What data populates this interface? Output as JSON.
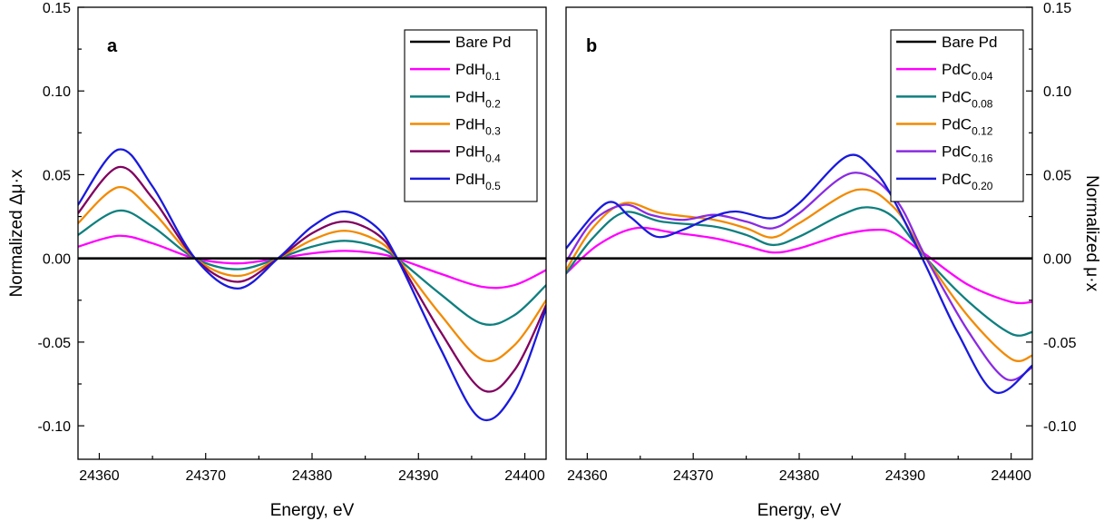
{
  "chart_data": [
    {
      "type": "line",
      "panel_label": "a",
      "xlabel": "Energy, eV",
      "ylabel": "Normalized Δμ·x",
      "xlim": [
        24358,
        24402
      ],
      "ylim": [
        -0.12,
        0.15
      ],
      "x_ticks": [
        24360,
        24370,
        24380,
        24390,
        24400
      ],
      "y_ticks": [
        -0.1,
        -0.05,
        0.0,
        0.05,
        0.1,
        0.15
      ],
      "y_tick_labels": [
        "-0.10",
        "-0.05",
        "0.00",
        "0.05",
        "0.10",
        "0.15"
      ],
      "y_axis_side": "left",
      "legend_position": "top-right",
      "series": [
        {
          "name": "Bare Pd",
          "label": "Bare Pd",
          "sub": "",
          "color": "#000000",
          "points": [
            [
              24358,
              0.0
            ],
            [
              24402,
              0.0
            ]
          ]
        },
        {
          "name": "PdH0.1",
          "label": "PdH",
          "sub": "0.1",
          "color": "#ff00ff",
          "points": [
            [
              24358,
              0.007
            ],
            [
              24361.8,
              0.0135
            ],
            [
              24365,
              0.009
            ],
            [
              24369,
              0.0
            ],
            [
              24373,
              -0.003
            ],
            [
              24376.8,
              0.0
            ],
            [
              24380,
              0.003
            ],
            [
              24383,
              0.0045
            ],
            [
              24386,
              0.003
            ],
            [
              24388,
              0.0
            ],
            [
              24392,
              -0.009
            ],
            [
              24396,
              -0.017
            ],
            [
              24399,
              -0.016
            ],
            [
              24402,
              -0.007
            ]
          ]
        },
        {
          "name": "PdH0.2",
          "label": "PdH",
          "sub": "0.2",
          "color": "#0f7f7f",
          "points": [
            [
              24358,
              0.014
            ],
            [
              24361.8,
              0.0285
            ],
            [
              24365,
              0.019
            ],
            [
              24369,
              0.0
            ],
            [
              24373,
              -0.0065
            ],
            [
              24376.8,
              0.0
            ],
            [
              24380,
              0.007
            ],
            [
              24383,
              0.0105
            ],
            [
              24386,
              0.007
            ],
            [
              24388,
              0.0
            ],
            [
              24392,
              -0.021
            ],
            [
              24396,
              -0.039
            ],
            [
              24399,
              -0.034
            ],
            [
              24402,
              -0.016
            ]
          ]
        },
        {
          "name": "PdH0.3",
          "label": "PdH",
          "sub": "0.3",
          "color": "#f28a00",
          "points": [
            [
              24358,
              0.021
            ],
            [
              24361.8,
              0.0425
            ],
            [
              24365,
              0.028
            ],
            [
              24369,
              0.0
            ],
            [
              24373,
              -0.0105
            ],
            [
              24376.8,
              0.0
            ],
            [
              24380,
              0.011
            ],
            [
              24383,
              0.0165
            ],
            [
              24386,
              0.011
            ],
            [
              24388,
              0.0
            ],
            [
              24392,
              -0.033
            ],
            [
              24396,
              -0.0605
            ],
            [
              24399,
              -0.052
            ],
            [
              24402,
              -0.025
            ]
          ]
        },
        {
          "name": "PdH0.4",
          "label": "PdH",
          "sub": "0.4",
          "color": "#800060",
          "points": [
            [
              24358,
              0.027
            ],
            [
              24361.8,
              0.0545
            ],
            [
              24365,
              0.036
            ],
            [
              24369,
              0.0
            ],
            [
              24373,
              -0.014
            ],
            [
              24376.8,
              0.0
            ],
            [
              24380,
              0.015
            ],
            [
              24383,
              0.022
            ],
            [
              24386,
              0.015
            ],
            [
              24388,
              0.0
            ],
            [
              24392,
              -0.043
            ],
            [
              24396,
              -0.0785
            ],
            [
              24399,
              -0.067
            ],
            [
              24402,
              -0.028
            ]
          ]
        },
        {
          "name": "PdH0.5",
          "label": "PdH",
          "sub": "0.5",
          "color": "#1a1adc",
          "points": [
            [
              24358,
              0.032
            ],
            [
              24361.8,
              0.065
            ],
            [
              24365,
              0.043
            ],
            [
              24369,
              0.0
            ],
            [
              24373,
              -0.018
            ],
            [
              24376.8,
              0.0
            ],
            [
              24380,
              0.019
            ],
            [
              24383,
              0.028
            ],
            [
              24386,
              0.019
            ],
            [
              24388,
              0.0
            ],
            [
              24392,
              -0.053
            ],
            [
              24395.8,
              -0.0955
            ],
            [
              24399,
              -0.08
            ],
            [
              24402,
              -0.03
            ]
          ]
        }
      ],
      "legend_entries": [
        "Bare Pd",
        "PdH0.1",
        "PdH0.2",
        "PdH0.3",
        "PdH0.4",
        "PdH0.5"
      ]
    },
    {
      "type": "line",
      "panel_label": "b",
      "xlabel": "Energy, eV",
      "ylabel": "Normalized μ·x",
      "xlim": [
        24358,
        24402
      ],
      "ylim": [
        -0.12,
        0.15
      ],
      "x_ticks": [
        24360,
        24370,
        24380,
        24390,
        24400
      ],
      "y_ticks": [
        -0.1,
        -0.05,
        0.0,
        0.05,
        0.1,
        0.15
      ],
      "y_tick_labels": [
        "-0.10",
        "-0.05",
        "0.00",
        "0.05",
        "0.10",
        "0.15"
      ],
      "y_axis_side": "right",
      "legend_position": "top-right",
      "series": [
        {
          "name": "Bare Pd",
          "label": "Bare Pd",
          "sub": "",
          "color": "#000000",
          "points": [
            [
              24358,
              0.0
            ],
            [
              24402,
              0.0
            ]
          ]
        },
        {
          "name": "PdC0.04",
          "label": "PdC",
          "sub": "0.04",
          "color": "#ff00ff",
          "points": [
            [
              24358,
              -0.009
            ],
            [
              24361,
              0.008
            ],
            [
              24364.5,
              0.018
            ],
            [
              24368,
              0.0155
            ],
            [
              24372,
              0.012
            ],
            [
              24375,
              0.0075
            ],
            [
              24377.5,
              0.0035
            ],
            [
              24380,
              0.006
            ],
            [
              24384,
              0.014
            ],
            [
              24387,
              0.017
            ],
            [
              24389,
              0.015
            ],
            [
              24392,
              0.002
            ],
            [
              24396,
              -0.016
            ],
            [
              24400,
              -0.026
            ],
            [
              24402,
              -0.026
            ]
          ]
        },
        {
          "name": "PdC0.08",
          "label": "PdC",
          "sub": "0.08",
          "color": "#0f7f7f",
          "points": [
            [
              24358,
              -0.009
            ],
            [
              24360.5,
              0.012
            ],
            [
              24363.5,
              0.0275
            ],
            [
              24367,
              0.022
            ],
            [
              24372,
              0.019
            ],
            [
              24375,
              0.014
            ],
            [
              24377.5,
              0.008
            ],
            [
              24380,
              0.013
            ],
            [
              24384,
              0.026
            ],
            [
              24386.5,
              0.0305
            ],
            [
              24389,
              0.024
            ],
            [
              24392,
              0.0
            ],
            [
              24396,
              -0.026
            ],
            [
              24400,
              -0.045
            ],
            [
              24402,
              -0.044
            ]
          ]
        },
        {
          "name": "PdC0.12",
          "label": "PdC",
          "sub": "0.12",
          "color": "#f28a00",
          "points": [
            [
              24358,
              -0.007
            ],
            [
              24360.5,
              0.018
            ],
            [
              24363.5,
              0.033
            ],
            [
              24367,
              0.027
            ],
            [
              24372,
              0.023
            ],
            [
              24375,
              0.018
            ],
            [
              24377.5,
              0.0125
            ],
            [
              24380,
              0.021
            ],
            [
              24385.5,
              0.041
            ],
            [
              24389,
              0.03
            ],
            [
              24392,
              0.0
            ],
            [
              24396,
              -0.035
            ],
            [
              24400,
              -0.06
            ],
            [
              24402,
              -0.058
            ]
          ]
        },
        {
          "name": "PdC0.16",
          "label": "PdC",
          "sub": "0.16",
          "color": "#8a2be2",
          "points": [
            [
              24358,
              -0.002
            ],
            [
              24360.5,
              0.022
            ],
            [
              24363.5,
              0.032
            ],
            [
              24366,
              0.026
            ],
            [
              24369,
              0.023
            ],
            [
              24372,
              0.026
            ],
            [
              24375,
              0.022
            ],
            [
              24377.5,
              0.018
            ],
            [
              24380,
              0.027
            ],
            [
              24385,
              0.051
            ],
            [
              24389,
              0.036
            ],
            [
              24392,
              0.0
            ],
            [
              24396,
              -0.044
            ],
            [
              24399.5,
              -0.072
            ],
            [
              24402,
              -0.065
            ]
          ]
        },
        {
          "name": "PdC0.20",
          "label": "PdC",
          "sub": "0.20",
          "color": "#1a1adc",
          "points": [
            [
              24358,
              0.006
            ],
            [
              24361.8,
              0.033
            ],
            [
              24364,
              0.025
            ],
            [
              24366.5,
              0.013
            ],
            [
              24369,
              0.017
            ],
            [
              24371.5,
              0.024
            ],
            [
              24374,
              0.028
            ],
            [
              24377.5,
              0.024
            ],
            [
              24380,
              0.033
            ],
            [
              24384.5,
              0.061
            ],
            [
              24387,
              0.053
            ],
            [
              24389,
              0.034
            ],
            [
              24392,
              -0.005
            ],
            [
              24395,
              -0.045
            ],
            [
              24398.5,
              -0.08
            ],
            [
              24402,
              -0.064
            ]
          ]
        }
      ],
      "legend_entries": [
        "Bare Pd",
        "PdC0.04",
        "PdC0.08",
        "PdC0.12",
        "PdC0.16",
        "PdC0.20"
      ]
    }
  ]
}
